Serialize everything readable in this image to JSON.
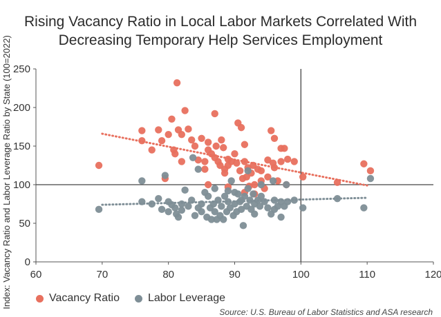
{
  "title_lines": [
    "Rising Vacancy Ratio in Local Labor Markets Correlated With",
    "Decreasing Temporary Help Services Employment"
  ],
  "source": "Source: U.S. Bureau of Labor Statistics and ASA research",
  "chart_data": {
    "type": "scatter",
    "title": "Rising Vacancy Ratio in Local Labor Markets Correlated With Decreasing Temporary Help Services Employment",
    "xlabel": "",
    "ylabel": "Index: Vacancy Ratio and Labor Leverage Ratio by State (100=2022)",
    "xlim": [
      60,
      120
    ],
    "ylim": [
      0,
      250
    ],
    "xticks": [
      60,
      70,
      80,
      90,
      100,
      110,
      120
    ],
    "yticks": [
      0,
      50,
      100,
      150,
      200,
      250
    ],
    "reference_lines": {
      "x": 100,
      "y": 100
    },
    "series": [
      {
        "name": "Vacancy Ratio",
        "color": "#E8705E",
        "trend": {
          "x": [
            70,
            110
          ],
          "y": [
            166,
            99
          ]
        },
        "points": [
          [
            69.5,
            125
          ],
          [
            76,
            170
          ],
          [
            76,
            157
          ],
          [
            77.5,
            145
          ],
          [
            78.5,
            171
          ],
          [
            79,
            157
          ],
          [
            79.5,
            108
          ],
          [
            80,
            165
          ],
          [
            80.5,
            185
          ],
          [
            80.8,
            145
          ],
          [
            81,
            140
          ],
          [
            81.3,
            232
          ],
          [
            81.5,
            171
          ],
          [
            82,
            130
          ],
          [
            82,
            165
          ],
          [
            82.5,
            196
          ],
          [
            83,
            172
          ],
          [
            83.5,
            158
          ],
          [
            84,
            150
          ],
          [
            84.5,
            132
          ],
          [
            85,
            160
          ],
          [
            85.5,
            130
          ],
          [
            85.5,
            120
          ],
          [
            86,
            145
          ],
          [
            86,
            155
          ],
          [
            86.5,
            140
          ],
          [
            87,
            135
          ],
          [
            87,
            192
          ],
          [
            87.2,
            150
          ],
          [
            87.5,
            130
          ],
          [
            87.8,
            125
          ],
          [
            88,
            158
          ],
          [
            88.3,
            148
          ],
          [
            88.5,
            120
          ],
          [
            88.5,
            115
          ],
          [
            89,
            133
          ],
          [
            89,
            125
          ],
          [
            89.5,
            130
          ],
          [
            90,
            140
          ],
          [
            90.3,
            128
          ],
          [
            90.5,
            180
          ],
          [
            90.8,
            118
          ],
          [
            91,
            174
          ],
          [
            91.2,
            108
          ],
          [
            91.5,
            130
          ],
          [
            91.5,
            152
          ],
          [
            91.8,
            110
          ],
          [
            92,
            122
          ],
          [
            92.2,
            98
          ],
          [
            92.5,
            115
          ],
          [
            92.8,
            125
          ],
          [
            93,
            100
          ],
          [
            93.5,
            120
          ],
          [
            94,
            118
          ],
          [
            94,
            105
          ],
          [
            95,
            110
          ],
          [
            95,
            132
          ],
          [
            95.5,
            170
          ],
          [
            95.8,
            128
          ],
          [
            96,
            122
          ],
          [
            96,
            160
          ],
          [
            96.5,
            105
          ],
          [
            97,
            147
          ],
          [
            97,
            130
          ],
          [
            97.5,
            147
          ],
          [
            97.8,
            100
          ],
          [
            98,
            133
          ],
          [
            99,
            130
          ],
          [
            100.3,
            110
          ],
          [
            105.5,
            103
          ],
          [
            109.5,
            127
          ],
          [
            110.5,
            118
          ],
          [
            86,
            100
          ],
          [
            93,
            88
          ],
          [
            91.5,
            90
          ],
          [
            89,
            97
          ],
          [
            94.5,
            95
          ]
        ]
      },
      {
        "name": "Labor Leverage",
        "color": "#7E8E96",
        "trend": {
          "x": [
            70,
            110
          ],
          "y": [
            74,
            83
          ]
        },
        "points": [
          [
            69.5,
            68
          ],
          [
            76,
            105
          ],
          [
            76,
            78
          ],
          [
            77.5,
            75
          ],
          [
            78.5,
            82
          ],
          [
            79,
            68
          ],
          [
            79.5,
            112
          ],
          [
            80,
            78
          ],
          [
            80,
            65
          ],
          [
            80.5,
            74
          ],
          [
            81,
            70
          ],
          [
            81.2,
            62
          ],
          [
            81.5,
            58
          ],
          [
            82,
            75
          ],
          [
            82,
            67
          ],
          [
            82.5,
            93
          ],
          [
            83,
            72
          ],
          [
            83.5,
            80
          ],
          [
            83.7,
            135
          ],
          [
            84,
            60
          ],
          [
            84.5,
            120
          ],
          [
            84.5,
            70
          ],
          [
            85,
            75
          ],
          [
            85,
            65
          ],
          [
            85.5,
            90
          ],
          [
            85.8,
            58
          ],
          [
            86,
            85
          ],
          [
            86.3,
            70
          ],
          [
            86.5,
            55
          ],
          [
            86.8,
            75
          ],
          [
            87,
            65
          ],
          [
            87,
            95
          ],
          [
            87.3,
            55
          ],
          [
            87.5,
            80
          ],
          [
            87.8,
            60
          ],
          [
            88,
            72
          ],
          [
            88.3,
            55
          ],
          [
            88.5,
            85
          ],
          [
            88.8,
            65
          ],
          [
            89,
            92
          ],
          [
            89,
            78
          ],
          [
            89.3,
            70
          ],
          [
            89.5,
            105
          ],
          [
            89.8,
            60
          ],
          [
            90,
            90
          ],
          [
            90,
            75
          ],
          [
            90.3,
            65
          ],
          [
            90.5,
            88
          ],
          [
            90.8,
            78
          ],
          [
            91,
            80
          ],
          [
            91,
            68
          ],
          [
            91.3,
            47
          ],
          [
            91.5,
            85
          ],
          [
            91.8,
            72
          ],
          [
            92,
            118
          ],
          [
            92,
            95
          ],
          [
            92.3,
            80
          ],
          [
            92.5,
            68
          ],
          [
            92.8,
            88
          ],
          [
            93,
            75
          ],
          [
            93,
            62
          ],
          [
            93.5,
            80
          ],
          [
            93.8,
            72
          ],
          [
            94,
            85
          ],
          [
            94,
            100
          ],
          [
            94.5,
            78
          ],
          [
            95,
            70
          ],
          [
            95.5,
            62
          ],
          [
            95.8,
            105
          ],
          [
            96,
            80
          ],
          [
            96,
            68
          ],
          [
            96.5,
            72
          ],
          [
            97,
            78
          ],
          [
            97,
            58
          ],
          [
            97.5,
            72
          ],
          [
            97.8,
            100
          ],
          [
            98,
            78
          ],
          [
            99,
            80
          ],
          [
            100.3,
            70
          ],
          [
            105.5,
            82
          ],
          [
            109.5,
            70
          ],
          [
            110.5,
            108
          ]
        ]
      }
    ],
    "legend": [
      {
        "label": "Vacancy Ratio",
        "color": "#E8705E"
      },
      {
        "label": "Labor Leverage",
        "color": "#7E8E96"
      }
    ]
  }
}
